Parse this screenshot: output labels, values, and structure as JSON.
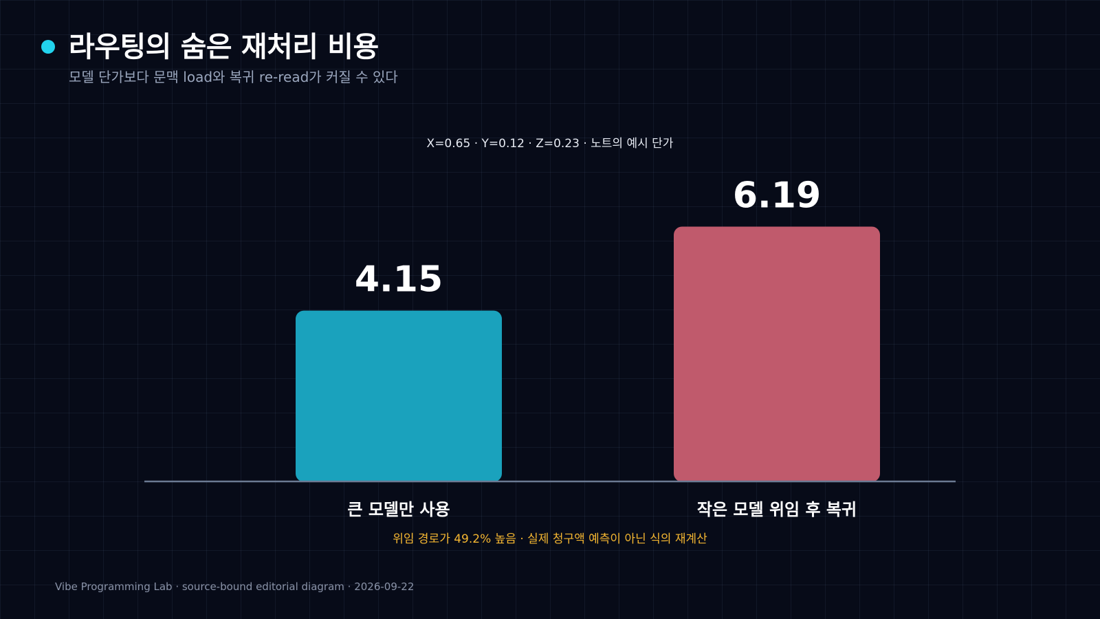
{
  "header": {
    "title": "라우팅의 숨은 재처리 비용",
    "subtitle": "모델 단가보다 문맥 load와 복귀 re-read가 커질 수 있다"
  },
  "chart_data": {
    "type": "bar",
    "annotation_top": "X=0.65 · Y=0.12 · Z=0.23 · 노트의 예시 단가",
    "categories": [
      "큰 모델만 사용",
      "작은 모델 위임 후 복귀"
    ],
    "values": [
      4.15,
      6.19
    ],
    "value_labels": [
      "4.15",
      "6.19"
    ],
    "bar_colors": [
      "#1aa2bd",
      "#c05a6c"
    ],
    "ylim": [
      0,
      7.35
    ],
    "grid": false,
    "note": "위임 경로가 49.2% 높음 · 실제 청구액 예측이 아닌 식의 재계산"
  },
  "colors": {
    "accent": "#22d3ee",
    "note": "#f5b731",
    "baseline": "#6b7a93",
    "subtitle": "#9aa6bd"
  },
  "footer": {
    "text": "Vibe Programming Lab · source-bound editorial diagram · 2026-09-22"
  }
}
